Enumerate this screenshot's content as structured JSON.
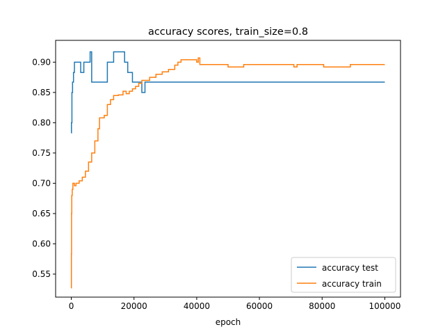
{
  "chart_data": {
    "type": "line",
    "title": "accuracy scores, train_size=0.8",
    "xlabel": "epoch",
    "ylabel": "",
    "xlim": [
      -5000,
      105000
    ],
    "ylim": [
      0.512,
      0.936
    ],
    "xticks": [
      0,
      20000,
      40000,
      60000,
      80000,
      100000
    ],
    "xtick_labels": [
      "0",
      "20000",
      "40000",
      "60000",
      "80000",
      "100000"
    ],
    "yticks": [
      0.55,
      0.6,
      0.65,
      0.7,
      0.75,
      0.8,
      0.85,
      0.9
    ],
    "ytick_labels": [
      "0.55",
      "0.60",
      "0.65",
      "0.70",
      "0.75",
      "0.80",
      "0.85",
      "0.90"
    ],
    "grid": false,
    "legend_position": "lower-right",
    "series": [
      {
        "name": "accuracy test",
        "color": "#1f77b4",
        "step": true,
        "points": [
          [
            0,
            0.783
          ],
          [
            50,
            0.8
          ],
          [
            200,
            0.85
          ],
          [
            400,
            0.867
          ],
          [
            700,
            0.883
          ],
          [
            1000,
            0.9
          ],
          [
            3000,
            0.883
          ],
          [
            4000,
            0.9
          ],
          [
            6000,
            0.917
          ],
          [
            6500,
            0.867
          ],
          [
            11500,
            0.9
          ],
          [
            13500,
            0.917
          ],
          [
            17000,
            0.9
          ],
          [
            18000,
            0.883
          ],
          [
            19500,
            0.867
          ],
          [
            22500,
            0.85
          ],
          [
            23500,
            0.867
          ],
          [
            100000,
            0.867
          ]
        ]
      },
      {
        "name": "accuracy train",
        "color": "#ff7f0e",
        "step": true,
        "points": [
          [
            0,
            0.527
          ],
          [
            30,
            0.583
          ],
          [
            80,
            0.65
          ],
          [
            150,
            0.68
          ],
          [
            300,
            0.69
          ],
          [
            500,
            0.7
          ],
          [
            1000,
            0.696
          ],
          [
            1500,
            0.7
          ],
          [
            2500,
            0.704
          ],
          [
            3500,
            0.71
          ],
          [
            4500,
            0.72
          ],
          [
            5500,
            0.735
          ],
          [
            6500,
            0.75
          ],
          [
            7500,
            0.77
          ],
          [
            8500,
            0.79
          ],
          [
            9000,
            0.808
          ],
          [
            10500,
            0.812
          ],
          [
            11500,
            0.83
          ],
          [
            12500,
            0.838
          ],
          [
            13500,
            0.845
          ],
          [
            15000,
            0.846
          ],
          [
            16500,
            0.852
          ],
          [
            17500,
            0.848
          ],
          [
            18500,
            0.852
          ],
          [
            19500,
            0.856
          ],
          [
            20500,
            0.86
          ],
          [
            21500,
            0.865
          ],
          [
            22500,
            0.87
          ],
          [
            25000,
            0.875
          ],
          [
            27000,
            0.88
          ],
          [
            29000,
            0.884
          ],
          [
            31000,
            0.888
          ],
          [
            33000,
            0.895
          ],
          [
            34000,
            0.9
          ],
          [
            35000,
            0.904
          ],
          [
            40000,
            0.9
          ],
          [
            40500,
            0.907
          ],
          [
            41000,
            0.896
          ],
          [
            50000,
            0.892
          ],
          [
            55000,
            0.896
          ],
          [
            71000,
            0.892
          ],
          [
            72000,
            0.896
          ],
          [
            80500,
            0.892
          ],
          [
            89000,
            0.896
          ],
          [
            100000,
            0.896
          ]
        ]
      }
    ]
  }
}
